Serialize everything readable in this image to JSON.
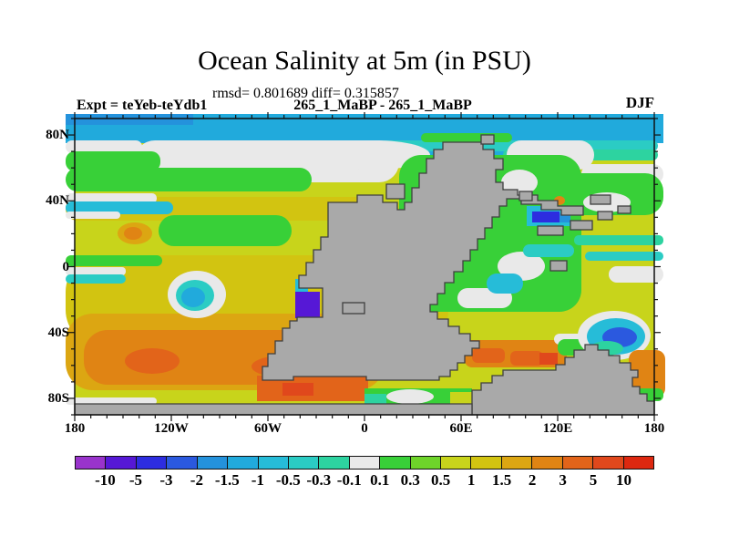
{
  "header": {
    "title": "Ocean Salinity at 5m (in PSU)",
    "stats_line": "rmsd= 0.801689 diff= 0.315857",
    "comparison_line": "265_1_MaBP - 265_1_MaBP",
    "experiment_label": "Expt = teYeb-teYdb1",
    "season_label": "DJF"
  },
  "map": {
    "lon_min": -180,
    "lon_max": 180,
    "lat_min": -90,
    "lat_max": 90,
    "lon_tick_labels": [
      "180",
      "120W",
      "60W",
      "0",
      "60E",
      "120E",
      "180"
    ],
    "lat_tick_labels": [
      {
        "text": "80N",
        "lat": 80
      },
      {
        "text": "40N",
        "lat": 40
      },
      {
        "text": "0",
        "lat": 0
      },
      {
        "text": "40S",
        "lat": -40
      },
      {
        "text": "80S",
        "lat": -80
      }
    ],
    "land_color": "#A9A9A9",
    "coast_color": "#3F3F3F",
    "frame_color": "#111111",
    "background": "#FFFFFF"
  },
  "colorbar": {
    "labels": [
      "-10",
      "-5",
      "-3",
      "-2",
      "-1.5",
      "-1",
      "-0.5",
      "-0.3",
      "-0.1",
      "0.1",
      "0.3",
      "0.5",
      "1",
      "1.5",
      "2",
      "3",
      "5",
      "10"
    ],
    "colors": [
      "#9933CC",
      "#5618D6",
      "#2D2DE0",
      "#2B59DF",
      "#2492DC",
      "#21AADC",
      "#26BCD8",
      "#2BCCC4",
      "#2DD3A0",
      "#E9E9E9",
      "#38D038",
      "#6ED42A",
      "#C8D41B",
      "#D2C411",
      "#DCA612",
      "#E08414",
      "#E2641A",
      "#E0481C",
      "#DD2810"
    ]
  },
  "chart_data": {
    "type": "heatmap",
    "subtype": "filled-contour-paleo-map",
    "title": "Ocean Salinity at 5m (in PSU)",
    "statistics": {
      "rmsd": 0.801689,
      "diff": 0.315857
    },
    "experiment": "teYeb-teYdb1",
    "comparison": "265_1_MaBP - 265_1_MaBP",
    "season": "DJF",
    "units": "PSU",
    "depth": "5m",
    "xlim": [
      -180,
      180
    ],
    "ylim": [
      -90,
      90
    ],
    "x_tick_labels": [
      "180",
      "120W",
      "60W",
      "0",
      "60E",
      "120E",
      "180"
    ],
    "y_tick_labels": [
      "80N",
      "40N",
      "0",
      "40S",
      "80S"
    ],
    "contour_levels": [
      -10,
      -5,
      -3,
      -2,
      -1.5,
      -1,
      -0.5,
      -0.3,
      -0.1,
      0.1,
      0.3,
      0.5,
      1,
      1.5,
      2,
      3,
      5,
      10
    ],
    "palette": [
      "#9933CC",
      "#5618D6",
      "#2D2DE0",
      "#2B59DF",
      "#2492DC",
      "#21AADC",
      "#26BCD8",
      "#2BCCC4",
      "#2DD3A0",
      "#E9E9E9",
      "#38D038",
      "#6ED42A",
      "#C8D41B",
      "#D2C411",
      "#DCA612",
      "#E08414",
      "#E2641A",
      "#E0481C",
      "#DD2810"
    ],
    "land_color": "#A9A9A9",
    "legend_position": "bottom",
    "grid": false,
    "notable_features": [
      {
        "region": "polar band 75N-90N, all longitudes",
        "value_psu": "-1.5 to -1"
      },
      {
        "region": "band ~55N-70N west and center",
        "value_psu": "-0.1 to 0.1 (white)"
      },
      {
        "region": "NH mid-latitude ocean",
        "value_psu": "0.5 to 1.5"
      },
      {
        "region": "equatorial streaks far west",
        "value_psu": "-1 to -0.3 with near-zero slivers"
      },
      {
        "region": "NH tropics spot ~20N far west",
        "value_psu": "1.5 to 3"
      },
      {
        "region": "SH subtropical band 20S-65S west of continent",
        "value_psu": "1.5 to 3"
      },
      {
        "region": "cyan eddy ~25S, ~95W, white rim",
        "value_psu": "-1 to -0.5"
      },
      {
        "region": "coastal patch ~22S at continent west coast",
        "value_psu": "-10 to -5 (purple)"
      },
      {
        "region": "inland-sea patch ~35N, ~65E",
        "value_psu": "-5 to -3 (dark blue)"
      },
      {
        "region": "south-coast embayment ~55S, 30E-60E",
        "value_psu": "2 to 5 with one 5-10 spot"
      },
      {
        "region": "SE eddy ~50S, ~110E",
        "value_psu": "-3 to -2 core, white rim"
      },
      {
        "region": "Tethys interior sea",
        "value_psu": "-0.5 to 0.5 patchwork"
      },
      {
        "region": "gray stair-stepped supercontinent and 80S-90S land strip",
        "value_psu": "land mask"
      }
    ]
  }
}
